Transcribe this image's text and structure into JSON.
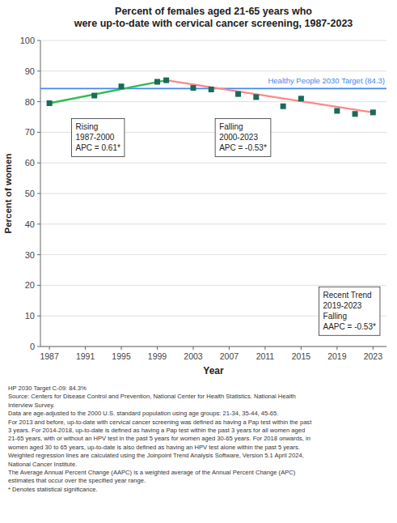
{
  "chart_data": {
    "type": "scatter",
    "title": "Percent of females aged 21-65 years who\nwere up-to-date with cervical cancer screening, 1987-2023",
    "y_label": "Percent of women",
    "x_label": "Year",
    "xlim": [
      1986,
      2024.5
    ],
    "ylim": [
      0,
      100
    ],
    "xticks": [
      1987,
      1991,
      1995,
      1999,
      2003,
      2007,
      2011,
      2015,
      2019,
      2023
    ],
    "yticks": [
      0,
      10,
      20,
      30,
      40,
      50,
      60,
      70,
      80,
      90,
      100
    ],
    "grid": "y",
    "series": [
      {
        "type": "scatter",
        "marker": "square",
        "color": "#1a6b5a",
        "x": [
          1987,
          1992,
          1995,
          1999,
          2000,
          2003,
          2005,
          2008,
          2010,
          2013,
          2015,
          2019,
          2021,
          2023
        ],
        "values": [
          79.5,
          82.0,
          85.0,
          86.5,
          87.0,
          84.5,
          84.0,
          82.5,
          81.5,
          78.5,
          81.0,
          77.0,
          76.0,
          76.5
        ]
      },
      {
        "type": "line",
        "color": "#33bb55",
        "x": [
          1987,
          2000
        ],
        "values": [
          79.5,
          87.0
        ]
      },
      {
        "type": "line",
        "color": "#ff8888",
        "x": [
          2000,
          2023
        ],
        "values": [
          87.0,
          76.5
        ]
      }
    ],
    "target": {
      "value": 84.3,
      "label": "Healthy People 2030 Target (84.3)",
      "color": "#4488ee"
    },
    "annotations": [
      "Rising\n1987-2000\nAPC =  0.61*",
      "Falling\n2000-2023\nAPC = -0.53*",
      "Recent Trend\n2019-2023\nFalling\nAAPC = -0.53*"
    ],
    "footnote": "HP 2030 Target C-09: 84.3%\nSource: Centers for Disease Control and Prevention, National Center for Health Statistics. National Health\nInterview Survey.\nData are age-adjusted to the 2000 U.S. standard population using age groups: 21-34, 35-44, 45-65.\nFor 2013 and before, up-to-date with cervical cancer screening was defined as having a Pap test within the past\n3 years. For 2014-2018, up-to-date is defined as having a Pap test within the past 3 years for all women aged\n21-65 years, with or without an HPV test in the past 5 years for women aged 30-65 years.  For 2018 onwards, in\nwomen aged 30 to 65 years, up-to-date is also defined as having an HPV test alone within the past 5 years.\nWeighted regression lines are calculated using the Joinpoint Trend Analysis Software, Version 5.1 April 2024,\nNational Cancer Institute.\nThe Average Annual Percent Change (AAPC) is a weighted average of the Annual Percent Change (APC)\nestimates that occur over the specified year range.\n* Denotes statistical significance."
  }
}
